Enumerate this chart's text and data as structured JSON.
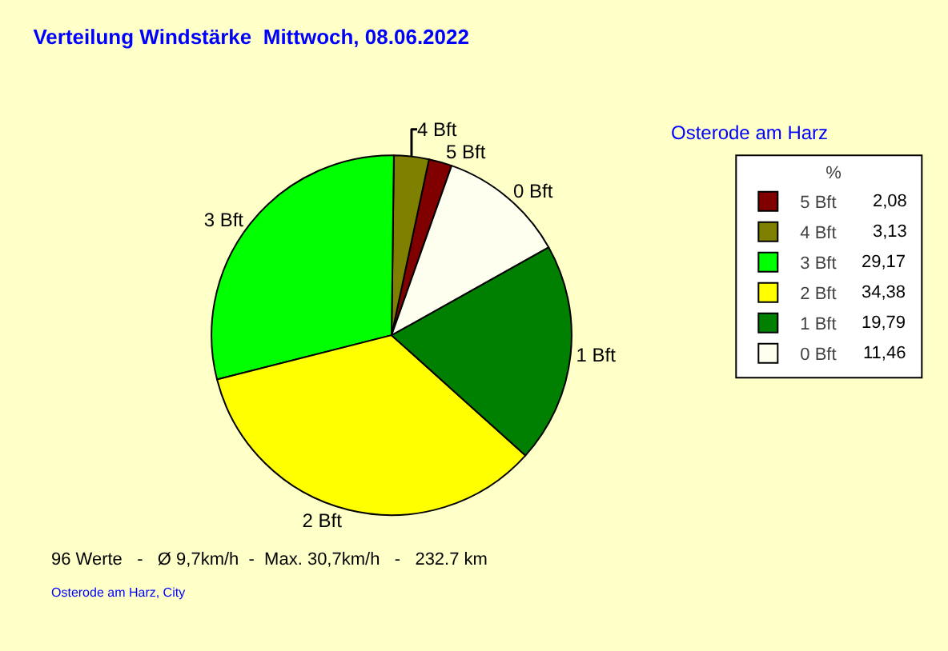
{
  "chart_data": {
    "type": "pie",
    "title": "Verteilung Windstärke  Mittwoch, 08.06.2022",
    "subtitle": "Osterode am Harz",
    "categories": [
      "5 Bft",
      "4 Bft",
      "3 Bft",
      "2 Bft",
      "1 Bft",
      "0 Bft"
    ],
    "values": [
      2.08,
      3.13,
      29.17,
      34.38,
      19.79,
      11.46
    ],
    "value_labels": [
      "2,08",
      "3,13",
      "29,17",
      "34,38",
      "19,79",
      "11,46"
    ],
    "colors": [
      "#800000",
      "#808000",
      "#00ff00",
      "#ffff00",
      "#008000",
      "#fffff0"
    ],
    "legend": "top right",
    "legend_title": "%",
    "annotations": [
      "96 Werte   -   Ø 9,7km/h  -  Max. 30,7km/h   -   232.7 km",
      "Osterode am Harz, City"
    ]
  }
}
